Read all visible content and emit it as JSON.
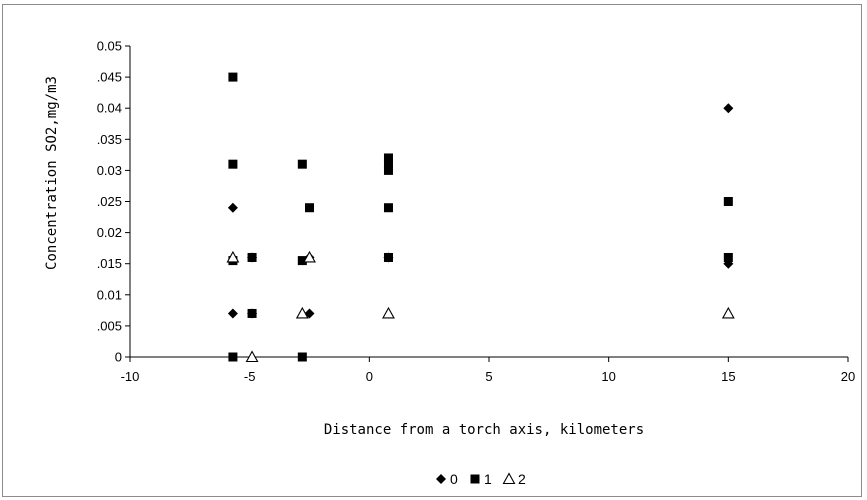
{
  "chart_data": {
    "type": "scatter",
    "title": "",
    "xlabel": "Distance from a torch axis, kilometers",
    "ylabel": "Concentration SO2,mg/m3",
    "xlim": [
      -10,
      20
    ],
    "ylim": [
      0,
      0.05
    ],
    "x_ticks": [
      -10,
      -5,
      0,
      5,
      10,
      15,
      20
    ],
    "x_tick_labels": [
      "-10",
      "-5",
      "0",
      "5",
      "10",
      "15",
      "20"
    ],
    "y_ticks": [
      0,
      0.005,
      0.01,
      0.015,
      0.02,
      0.025,
      0.03,
      0.035,
      0.04,
      0.045,
      0.05
    ],
    "y_tick_labels": [
      "0",
      ".005",
      "0.01",
      ".015",
      "0.02",
      ".025",
      "0.03",
      ".035",
      "0.04",
      ".045",
      "0.05"
    ],
    "grid": false,
    "legend_position": "bottom",
    "series": [
      {
        "name": "0",
        "marker": "diamond",
        "color": "#000000",
        "points": [
          [
            -5.7,
            0.024
          ],
          [
            -5.7,
            0.007
          ],
          [
            -4.9,
            0.016
          ],
          [
            -4.9,
            0.007
          ],
          [
            -2.5,
            0.007
          ],
          [
            -2.5,
            0.016
          ],
          [
            0.8,
            0.016
          ],
          [
            15,
            0.04
          ],
          [
            15,
            0.015
          ]
        ]
      },
      {
        "name": "1",
        "marker": "square",
        "color": "#000000",
        "points": [
          [
            -5.7,
            0.045
          ],
          [
            -5.7,
            0.031
          ],
          [
            -5.7,
            0.0155
          ],
          [
            -5.7,
            0.0
          ],
          [
            -4.9,
            0.016
          ],
          [
            -4.9,
            0.007
          ],
          [
            -2.8,
            0.031
          ],
          [
            -2.8,
            0.0155
          ],
          [
            -2.8,
            0.0
          ],
          [
            -2.5,
            0.024
          ],
          [
            0.8,
            0.032
          ],
          [
            0.8,
            0.031
          ],
          [
            0.8,
            0.03
          ],
          [
            0.8,
            0.024
          ],
          [
            0.8,
            0.016
          ],
          [
            15,
            0.025
          ],
          [
            15,
            0.016
          ]
        ]
      },
      {
        "name": "2",
        "marker": "triangle",
        "color": "#000000",
        "points": [
          [
            -5.7,
            0.016
          ],
          [
            -4.9,
            0.0
          ],
          [
            -2.8,
            0.007
          ],
          [
            -2.5,
            0.016
          ],
          [
            0.8,
            0.007
          ],
          [
            15,
            0.007
          ]
        ]
      }
    ]
  }
}
